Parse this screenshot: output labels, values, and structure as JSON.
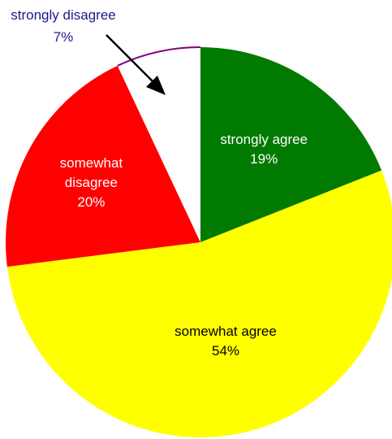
{
  "chart_data": {
    "type": "pie",
    "title": "",
    "slices": [
      {
        "label_lines": [
          "strongly agree",
          "19%"
        ],
        "value": 19,
        "color": "#007a00",
        "label_color": "#ffffff"
      },
      {
        "label_lines": [
          "somewhat agree",
          "54%"
        ],
        "value": 54,
        "color": "#ffff00",
        "label_color": "#000000"
      },
      {
        "label_lines": [
          "somewhat",
          "disagree",
          "20%"
        ],
        "value": 20,
        "color": "#ff0000",
        "label_color": "#ffffff"
      },
      {
        "label_lines": [
          "strongly disagree",
          "7%"
        ],
        "value": 7,
        "color": "#ffffff",
        "label_color": "#1a1a8c",
        "callout": true,
        "edge_color": "#800080"
      }
    ],
    "legend": "none"
  }
}
